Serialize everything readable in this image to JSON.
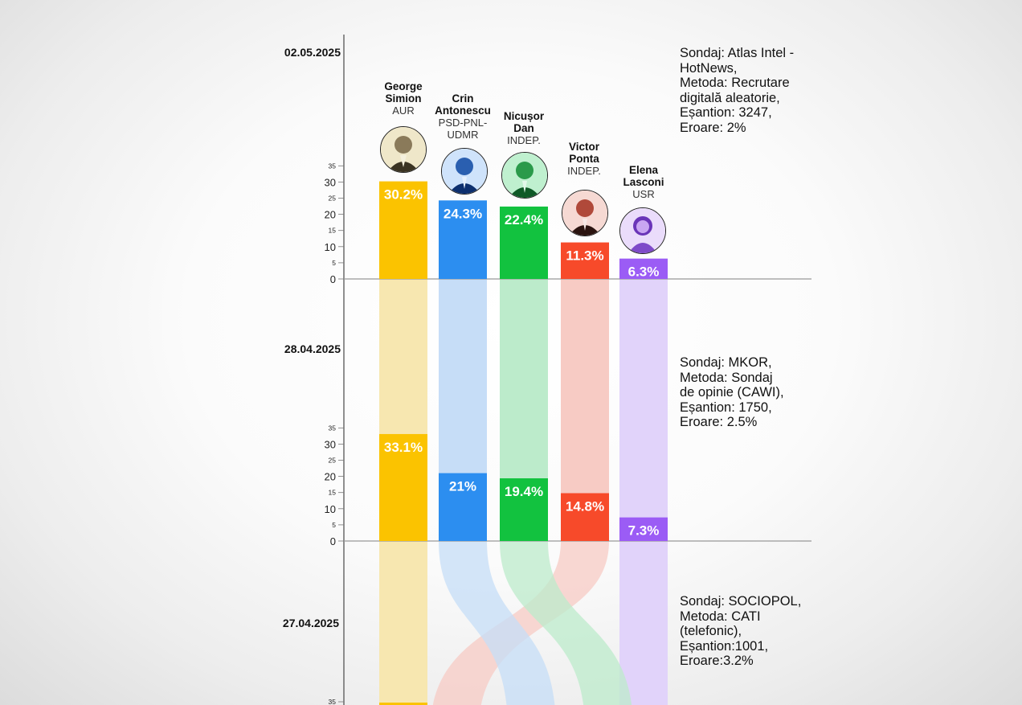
{
  "chart_data": {
    "type": "bar",
    "candidates": [
      {
        "name": "George\nSimion",
        "party": "AUR",
        "color": "#FBC300",
        "fade": "#F7E7B0",
        "icon": "portrait-george-simion"
      },
      {
        "name": "Crin\nAntonescu",
        "party": "PSD-PNL-\nUDMR",
        "color": "#2C8EF0",
        "fade": "#C6DDF7",
        "icon": "portrait-crin-antonescu"
      },
      {
        "name": "Nicușor\nDan",
        "party": "INDEP.",
        "color": "#12C23F",
        "fade": "#BCEBCB",
        "icon": "portrait-nicusor-dan"
      },
      {
        "name": "Victor\nPonta",
        "party": "INDEP.",
        "color": "#F74A2A",
        "fade": "#F7CBC4",
        "icon": "portrait-victor-ponta"
      },
      {
        "name": "Elena\nLasconi",
        "party": "USR",
        "color": "#9B5CF5",
        "fade": "#E1D3FA",
        "icon": "portrait-elena-lasconi"
      }
    ],
    "yticks": [
      0,
      5,
      10,
      15,
      20,
      25,
      30,
      35
    ],
    "ylim": [
      0,
      35
    ],
    "polls": [
      {
        "date": "02.05.2025",
        "values": [
          30.2,
          24.3,
          22.4,
          11.3,
          6.3
        ],
        "labels": [
          "30.2%",
          "24.3%",
          "22.4%",
          "11.3%",
          "6.3%"
        ],
        "note": "Sondaj: Atlas Intel -\nHotNews,\nMetoda: Recrutare\ndigitală aleatorie,\nEșantion: 3247,\nEroare: 2%"
      },
      {
        "date": "28.04.2025",
        "values": [
          33.1,
          21,
          19.4,
          14.8,
          7.3
        ],
        "labels": [
          "33.1%",
          "21%",
          "19.4%",
          "14.8%",
          "7.3%"
        ],
        "note": "Sondaj: MKOR,\nMetoda: Sondaj\nde opinie (CAWI),\nEșantion: 1750,\nEroare: 2.5%"
      },
      {
        "date": "27.04.2025",
        "values": [],
        "labels": [],
        "note": "Sondaj: SOCIOPOL,\nMetoda: CATI\n(telefonic),\nEșantion:1001,\nEroare:3.2%"
      }
    ]
  }
}
